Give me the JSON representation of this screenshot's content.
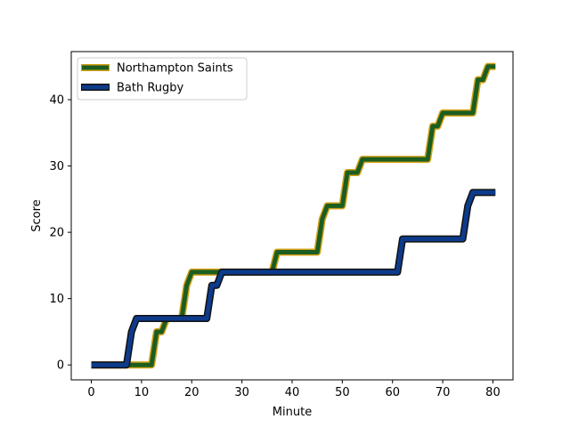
{
  "chart_data": {
    "type": "line",
    "title": "",
    "xlabel": "Minute",
    "ylabel": "Score",
    "xlim": [
      -4,
      84
    ],
    "ylim": [
      -2.25,
      47.25
    ],
    "xticks": [
      0,
      10,
      20,
      30,
      40,
      50,
      60,
      70,
      80
    ],
    "yticks": [
      0,
      10,
      20,
      30,
      40
    ],
    "grid": false,
    "legend": "top-left",
    "series": [
      {
        "name": "Northampton Saints",
        "color": "#1b5e20",
        "edge_color": "#d4a017",
        "points": [
          [
            0,
            0
          ],
          [
            12,
            0
          ],
          [
            13,
            5
          ],
          [
            14,
            5
          ],
          [
            15,
            7
          ],
          [
            18,
            7
          ],
          [
            19,
            12
          ],
          [
            20,
            14
          ],
          [
            36,
            14
          ],
          [
            37,
            17
          ],
          [
            45,
            17
          ],
          [
            46,
            22
          ],
          [
            47,
            24
          ],
          [
            50,
            24
          ],
          [
            51,
            29
          ],
          [
            53,
            29
          ],
          [
            54,
            31
          ],
          [
            67,
            31
          ],
          [
            68,
            36
          ],
          [
            69,
            36
          ],
          [
            70,
            38
          ],
          [
            76,
            38
          ],
          [
            77,
            43
          ],
          [
            78,
            43
          ],
          [
            79,
            45
          ],
          [
            80.5,
            45
          ]
        ]
      },
      {
        "name": "Bath Rugby",
        "color": "#0d3b8c",
        "edge_color": "#111111",
        "points": [
          [
            0,
            0
          ],
          [
            7,
            0
          ],
          [
            8,
            5
          ],
          [
            9,
            7
          ],
          [
            23,
            7
          ],
          [
            24,
            12
          ],
          [
            25,
            12
          ],
          [
            26,
            14
          ],
          [
            61,
            14
          ],
          [
            62,
            19
          ],
          [
            74,
            19
          ],
          [
            75,
            24
          ],
          [
            76,
            26
          ],
          [
            80.5,
            26
          ]
        ]
      }
    ]
  }
}
